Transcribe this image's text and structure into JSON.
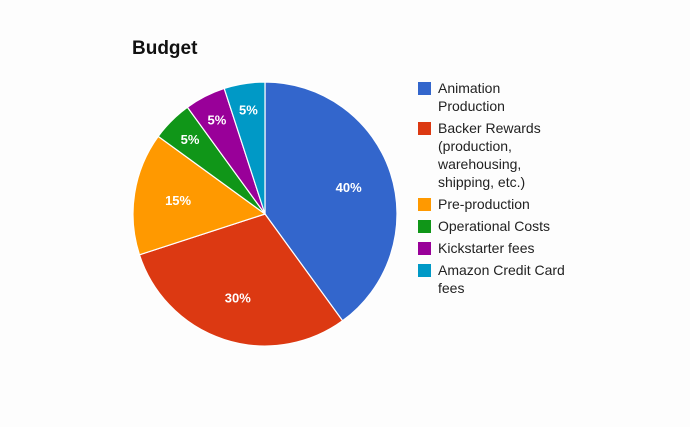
{
  "chart_data": {
    "type": "pie",
    "title": "Budget",
    "categories": [
      "Animation Production",
      "Backer Rewards (production, warehousing, shipping, etc.)",
      "Pre-production",
      "Operational Costs",
      "Kickstarter fees",
      "Amazon Credit Card fees"
    ],
    "values": [
      40,
      30,
      15,
      5,
      5,
      5
    ],
    "slice_labels": [
      "40%",
      "30%",
      "15%",
      "5%",
      "5%",
      "5%"
    ],
    "colors": [
      "#3366cc",
      "#dc3912",
      "#ff9900",
      "#109618",
      "#990099",
      "#0099c6"
    ],
    "legend_position": "right"
  }
}
